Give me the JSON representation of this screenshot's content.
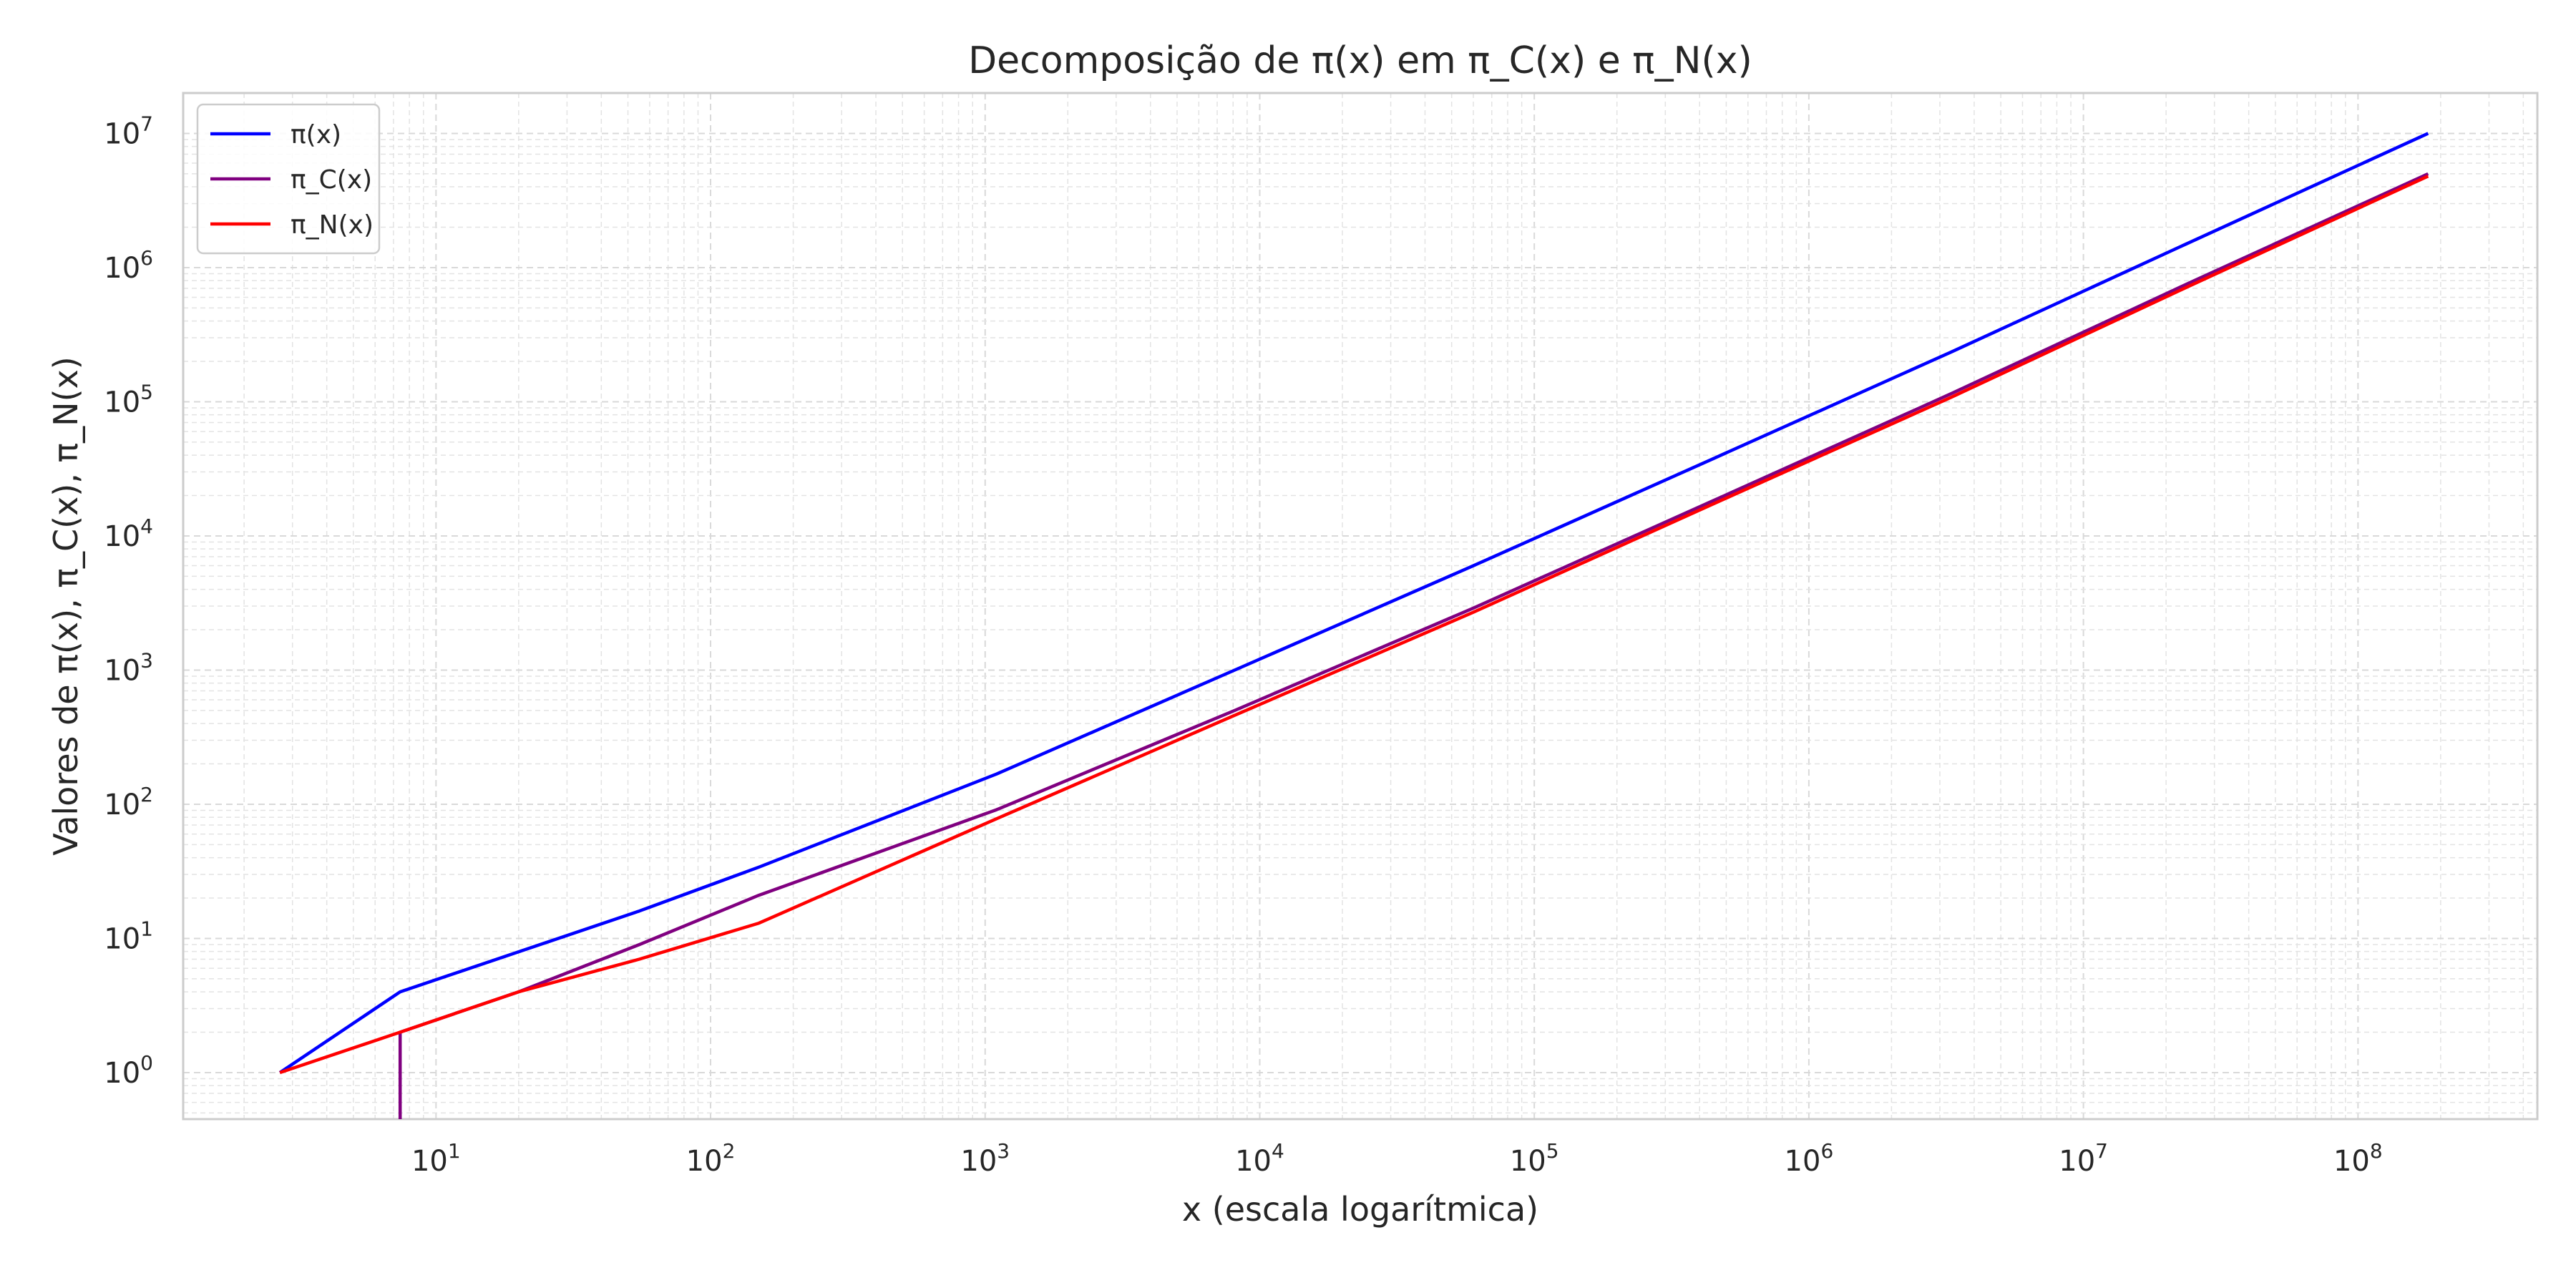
{
  "chart_data": {
    "type": "line",
    "title": "Decomposição de π(x) em π_C(x) e π_N(x)",
    "xlabel": "x (escala logarítmica)",
    "ylabel": "Valores de π(x), π_C(x), π_N(x)",
    "x_scale": "log",
    "y_scale": "log",
    "xlim": [
      1.2,
      450000000
    ],
    "ylim": [
      0.45,
      20000000
    ],
    "grid": true,
    "legend_position": "top-left",
    "x_ticks": [
      10,
      100,
      1000,
      10000,
      100000,
      1000000,
      10000000,
      100000000
    ],
    "x_tick_labels": [
      "10^1",
      "10^2",
      "10^3",
      "10^4",
      "10^5",
      "10^6",
      "10^7",
      "10^8"
    ],
    "y_ticks": [
      1,
      10,
      100,
      1000,
      10000,
      100000,
      1000000,
      10000000
    ],
    "y_tick_labels": [
      "10^0",
      "10^1",
      "10^2",
      "10^3",
      "10^4",
      "10^5",
      "10^6",
      "10^7"
    ],
    "series": [
      {
        "name": "π(x)",
        "color": "#0000ff",
        "x": [
          2.7,
          7.4,
          55,
          150,
          1100,
          8100,
          60000,
          440000,
          3300000,
          24000000,
          180000000
        ],
        "y": [
          1,
          4,
          16,
          34,
          168,
          1000,
          6000,
          37000,
          235000,
          1520000,
          10000000
        ]
      },
      {
        "name": "π_C(x)",
        "color": "#800080",
        "x": [
          7.4,
          7.4,
          20,
          55,
          150,
          1100,
          8100,
          60000,
          440000,
          3300000,
          24000000,
          180000000
        ],
        "y": [
          0.45,
          2,
          4,
          9,
          21,
          91,
          500,
          2900,
          18000,
          115000,
          760000,
          5000000
        ]
      },
      {
        "name": "π_N(x)",
        "color": "#ff0000",
        "x": [
          2.7,
          7.4,
          20,
          55,
          150,
          1100,
          8100,
          60000,
          440000,
          3300000,
          24000000,
          180000000
        ],
        "y": [
          1,
          2,
          4,
          7,
          13,
          78,
          460,
          2700,
          17000,
          108000,
          720000,
          4800000
        ]
      }
    ]
  }
}
